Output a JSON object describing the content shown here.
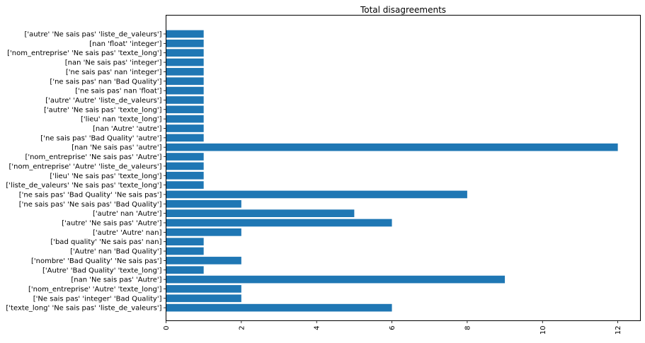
{
  "chart_data": {
    "type": "bar",
    "orientation": "horizontal",
    "title": "Total disagreements",
    "xlabel": "",
    "ylabel": "",
    "xlim": [
      0,
      12.6
    ],
    "xticks": [
      0,
      2,
      4,
      6,
      8,
      10,
      12
    ],
    "bar_color": "#1f77b4",
    "grid": false,
    "categories": [
      "['autre' 'Ne sais pas' 'liste_de_valeurs']",
      "[nan 'float' 'integer']",
      "['nom_entreprise' 'Ne sais pas' 'texte_long']",
      "[nan 'Ne sais pas' 'integer']",
      "['ne sais pas' nan 'integer']",
      "['ne sais pas' nan 'Bad Quality']",
      "['ne sais pas' nan 'float']",
      "['autre' 'Autre' 'liste_de_valeurs']",
      "['autre' 'Ne sais pas' 'texte_long']",
      "['lieu' nan 'texte_long']",
      "[nan 'Autre' 'autre']",
      "['ne sais pas' 'Bad Quality' 'autre']",
      "[nan 'Ne sais pas' 'autre']",
      "['nom_entreprise' 'Ne sais pas' 'Autre']",
      "['nom_entreprise' 'Autre' 'liste_de_valeurs']",
      "['lieu' 'Ne sais pas' 'texte_long']",
      "['liste_de_valeurs' 'Ne sais pas' 'texte_long']",
      "['ne sais pas' 'Bad Quality' 'Ne sais pas']",
      "['ne sais pas' 'Ne sais pas' 'Bad Quality']",
      "['autre' nan 'Autre']",
      "['autre' 'Ne sais pas' 'Autre']",
      "['autre' 'Autre' nan]",
      "['bad quality' 'Ne sais pas' nan]",
      "['Autre' nan 'Bad Quality']",
      "['nombre' 'Bad Quality' 'Ne sais pas']",
      "['Autre' 'Bad Quality' 'texte_long']",
      "[nan 'Ne sais pas' 'Autre']",
      "['nom_entreprise' 'Autre' 'texte_long']",
      "['Ne sais pas' 'integer' 'Bad Quality']",
      "['texte_long' 'Ne sais pas' 'liste_de_valeurs']"
    ],
    "values": [
      1,
      1,
      1,
      1,
      1,
      1,
      1,
      1,
      1,
      1,
      1,
      1,
      12,
      1,
      1,
      1,
      1,
      8,
      2,
      5,
      6,
      2,
      1,
      1,
      2,
      1,
      9,
      2,
      2,
      6
    ]
  }
}
